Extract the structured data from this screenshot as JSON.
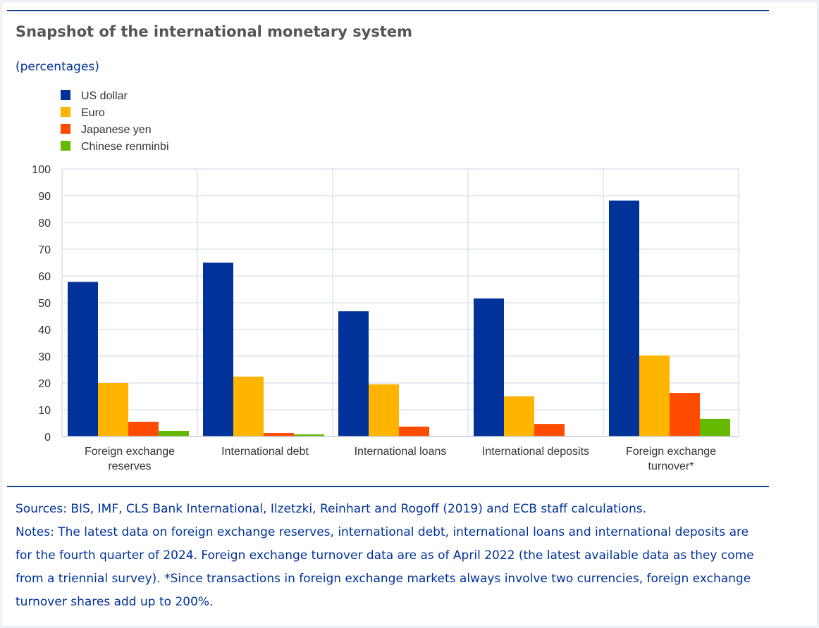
{
  "title": "Snapshot of the international monetary system",
  "subtitle": "(percentages)",
  "sources": "Sources: BIS, IMF, CLS Bank International, Ilzetzki, Reinhart and Rogoff (2019) and ECB staff calculations.",
  "notes": "Notes: The latest data on foreign exchange reserves, international debt, international loans and international deposits are for the fourth quarter of 2024. Foreign exchange turnover data are as of April 2022 (the latest available data as they come from a triennial survey). *Since transactions in foreign exchange markets always involve two currencies, foreign exchange turnover shares add up to 200%.",
  "chart_data": {
    "type": "bar",
    "title": "Snapshot of the international monetary system",
    "ylabel": "(percentages)",
    "ylim": [
      0,
      100
    ],
    "yticks": [
      0,
      10,
      20,
      30,
      40,
      50,
      60,
      70,
      80,
      90,
      100
    ],
    "grid": true,
    "legend_position": "top-left",
    "categories": [
      [
        "Foreign exchange",
        "reserves"
      ],
      [
        "International debt"
      ],
      [
        "International loans"
      ],
      [
        "International deposits"
      ],
      [
        "Foreign exchange",
        "turnover*"
      ]
    ],
    "series": [
      {
        "name": "US dollar",
        "color": "#003299",
        "values": [
          57.8,
          65.0,
          46.8,
          51.6,
          88.2
        ]
      },
      {
        "name": "Euro",
        "color": "#ffb400",
        "values": [
          20.0,
          22.4,
          19.5,
          15.0,
          30.3
        ]
      },
      {
        "name": "Japanese yen",
        "color": "#ff4b00",
        "values": [
          5.5,
          1.3,
          3.7,
          4.7,
          16.3
        ]
      },
      {
        "name": "Chinese renminbi",
        "color": "#65b800",
        "values": [
          2.1,
          0.8,
          0,
          0,
          6.6
        ]
      }
    ]
  }
}
